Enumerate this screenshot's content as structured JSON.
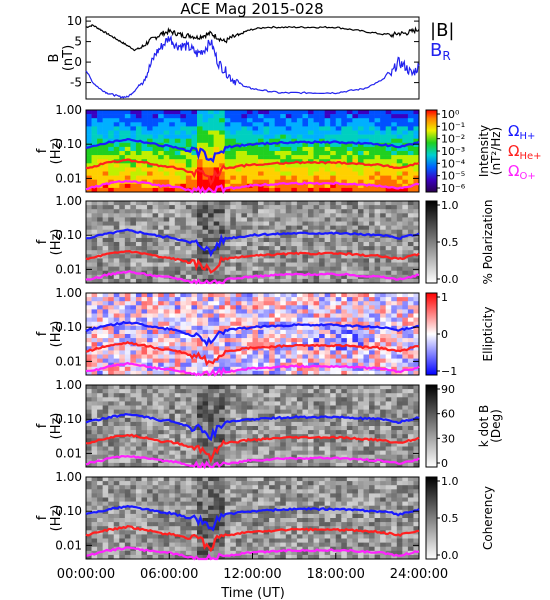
{
  "title": "ACE Mag 2015-028",
  "x_axis": {
    "label": "Time (UT)",
    "ticks": [
      "00:00:00",
      "06:00:00",
      "12:00:00",
      "18:00:00",
      "24:00:00"
    ],
    "range_hours": [
      0,
      24
    ]
  },
  "colors": {
    "B_total": "#000000",
    "B_R": "#2222ee",
    "H": "#1a1aff",
    "He": "#ff2020",
    "O": "#ff22ff"
  },
  "panels": {
    "mag": {
      "ylabel_1": "B",
      "ylabel_2": "(nT)",
      "ticks": [
        "10",
        "5",
        "0",
        "-5"
      ],
      "legend_B": "|B|",
      "legend_BR": "B",
      "legend_BR_sub": "R"
    },
    "intensity": {
      "ylabel_1": "f",
      "ylabel_2": "(Hz)",
      "ticks": [
        "1.00",
        "0.10",
        "0.01"
      ],
      "cbar_label_1": "Intensity",
      "cbar_label_2": "(nT²/Hz)",
      "cbar_ticks": [
        "10⁰",
        "10⁻¹",
        "10⁻²",
        "10⁻³",
        "10⁻⁴",
        "10⁻⁵",
        "10⁻⁶"
      ],
      "legend_H": "ΩH+",
      "legend_He": "ΩHe+",
      "legend_O": "ΩO+",
      "legend_H_main": "Ω",
      "legend_H_sub": "H+",
      "legend_He_main": "Ω",
      "legend_He_sub": "He+",
      "legend_O_main": "Ω",
      "legend_O_sub": "O+"
    },
    "polarization": {
      "ylabel_1": "f",
      "ylabel_2": "(Hz)",
      "ticks": [
        "1.00",
        "0.10",
        "0.01"
      ],
      "cbar_label": "% Polarization",
      "cbar_ticks": [
        "1.0",
        "0.5",
        "0.0"
      ]
    },
    "ellipticity": {
      "ylabel_1": "f",
      "ylabel_2": "(Hz)",
      "ticks": [
        "1.00",
        "0.10",
        "0.01"
      ],
      "cbar_label": "Ellipticity",
      "cbar_ticks": [
        "1",
        "0",
        "−1"
      ]
    },
    "kdotb": {
      "ylabel_1": "f",
      "ylabel_2": "(Hz)",
      "ticks": [
        "1.00",
        "0.10",
        "0.01"
      ],
      "cbar_label_1": "k dot B",
      "cbar_label_2": "(Deg)",
      "cbar_ticks": [
        "90",
        "60",
        "30",
        "0"
      ]
    },
    "coherency": {
      "ylabel_1": "f",
      "ylabel_2": "(Hz)",
      "ticks": [
        "1.00",
        "0.10",
        "0.01"
      ],
      "cbar_label": "Coherency",
      "cbar_ticks": [
        "1.0",
        "0.5",
        "0.0"
      ]
    }
  },
  "chart_data": {
    "type": "line",
    "title": "ACE Mag 2015-028",
    "xlabel": "Time (UT)",
    "x_unit": "hours UT",
    "x": [
      0,
      0.5,
      1,
      1.5,
      2,
      2.5,
      3,
      3.5,
      4,
      4.5,
      5,
      5.5,
      6,
      6.5,
      7,
      7.5,
      8,
      8.5,
      9,
      9.5,
      10,
      10.5,
      11,
      11.5,
      12,
      13,
      14,
      15,
      16,
      17,
      18,
      19,
      20,
      21,
      22,
      22.5,
      23,
      23.5,
      24
    ],
    "mag_panel": {
      "ylabel": "B (nT)",
      "ylim": [
        -9,
        11
      ],
      "series": [
        {
          "name": "|B|",
          "values": [
            8.5,
            9,
            8,
            7,
            6,
            5,
            4,
            3,
            3.5,
            5,
            6,
            7,
            7.5,
            7,
            6.5,
            6.5,
            6,
            6.5,
            7,
            6,
            5,
            6,
            6.5,
            7.5,
            8,
            8.5,
            8.5,
            8.5,
            8.5,
            8.5,
            8.5,
            8,
            7.5,
            7,
            6.5,
            7,
            7,
            7.5,
            8
          ]
        },
        {
          "name": "B_R",
          "values": [
            -2,
            -5,
            -6.5,
            -7.5,
            -8,
            -8.5,
            -8.5,
            -7,
            -5,
            -2,
            2,
            4,
            6,
            4,
            4,
            3.5,
            2,
            3,
            5,
            0,
            -2,
            -4,
            -5,
            -6,
            -6.5,
            -7,
            -7.5,
            -7.5,
            -7.5,
            -7.5,
            -7.5,
            -7,
            -6.5,
            -5,
            -3,
            0,
            -1,
            -3,
            -1
          ]
        }
      ]
    },
    "frequency_panels": {
      "ylabel": "f (Hz)",
      "yscale": "log",
      "ylim": [
        0.004,
        1.0
      ],
      "series": [
        {
          "name": "ΩH+",
          "values": [
            0.08,
            0.09,
            0.1,
            0.11,
            0.12,
            0.13,
            0.14,
            0.13,
            0.12,
            0.11,
            0.1,
            0.09,
            0.09,
            0.08,
            0.07,
            0.06,
            0.06,
            0.05,
            0.03,
            0.06,
            0.08,
            0.085,
            0.09,
            0.095,
            0.1,
            0.105,
            0.11,
            0.115,
            0.115,
            0.115,
            0.115,
            0.11,
            0.105,
            0.1,
            0.09,
            0.08,
            0.09,
            0.1,
            0.11
          ]
        },
        {
          "name": "ΩHe+",
          "values": [
            0.02,
            0.022,
            0.025,
            0.028,
            0.03,
            0.032,
            0.035,
            0.032,
            0.03,
            0.028,
            0.025,
            0.022,
            0.022,
            0.02,
            0.018,
            0.015,
            0.015,
            0.012,
            0.008,
            0.015,
            0.02,
            0.021,
            0.022,
            0.024,
            0.025,
            0.026,
            0.028,
            0.029,
            0.029,
            0.029,
            0.029,
            0.028,
            0.026,
            0.025,
            0.022,
            0.02,
            0.022,
            0.025,
            0.028
          ]
        },
        {
          "name": "ΩO+",
          "values": [
            0.005,
            0.0055,
            0.006,
            0.007,
            0.0075,
            0.008,
            0.0085,
            0.008,
            0.0075,
            0.007,
            0.0065,
            0.006,
            0.006,
            0.0055,
            0.005,
            0.0045,
            0.0045,
            0.0042,
            0.004,
            0.0045,
            0.005,
            0.0052,
            0.0055,
            0.006,
            0.0062,
            0.0065,
            0.007,
            0.0072,
            0.0072,
            0.0072,
            0.0072,
            0.007,
            0.0065,
            0.0062,
            0.0055,
            0.005,
            0.0055,
            0.006,
            0.007
          ]
        }
      ]
    }
  }
}
